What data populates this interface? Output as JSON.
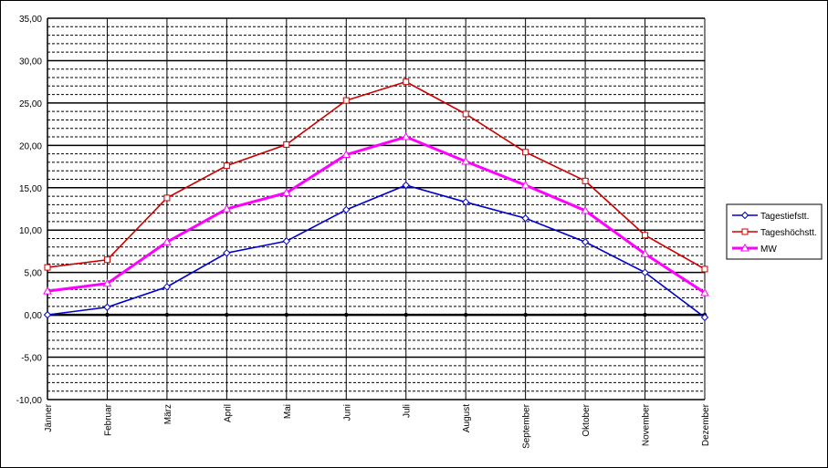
{
  "chart_data": {
    "type": "line",
    "title": "",
    "xlabel": "",
    "ylabel": "",
    "ylim": [
      -10,
      35
    ],
    "y_major_step": 5,
    "y_minor_step": 1,
    "grid": true,
    "legend_position": "right",
    "y_tick_labels": [
      "35,00",
      "30,00",
      "25,00",
      "20,00",
      "15,00",
      "10,00",
      "5,00",
      "0,00",
      "-5,00",
      "-10,00"
    ],
    "categories": [
      "Jänner",
      "Februar",
      "März",
      "April",
      "Mai",
      "Juni",
      "Juli",
      "August",
      "September",
      "Oktober",
      "November",
      "Dezember"
    ],
    "series": [
      {
        "name": "Tagestiefstt.",
        "color": "#0000cc",
        "marker": "diamond",
        "values": [
          0.0,
          0.9,
          3.3,
          7.3,
          8.7,
          12.4,
          15.3,
          13.3,
          11.4,
          8.6,
          5.0,
          -0.3
        ]
      },
      {
        "name": "Tageshöchstt.",
        "color": "#cc0000",
        "marker": "square",
        "values": [
          5.6,
          6.5,
          13.8,
          17.6,
          20.1,
          25.3,
          27.5,
          23.7,
          19.2,
          15.8,
          9.4,
          5.4
        ]
      },
      {
        "name": "MW",
        "color": "#ff00ff",
        "marker": "triangle",
        "values": [
          2.8,
          3.7,
          8.6,
          12.5,
          14.4,
          18.9,
          21.0,
          18.1,
          15.3,
          12.3,
          7.2,
          2.6
        ]
      }
    ]
  }
}
